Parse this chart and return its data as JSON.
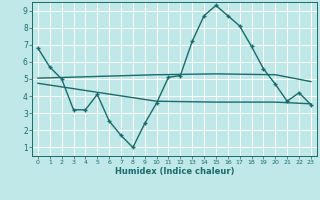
{
  "xlabel": "Humidex (Indice chaleur)",
  "ylabel": "",
  "bg_color": "#c0e8e8",
  "line_color": "#1a6b6b",
  "grid_color": "#ffffff",
  "xlim": [
    -0.5,
    23.5
  ],
  "ylim": [
    0.5,
    9.5
  ],
  "xticks": [
    0,
    1,
    2,
    3,
    4,
    5,
    6,
    7,
    8,
    9,
    10,
    11,
    12,
    13,
    14,
    15,
    16,
    17,
    18,
    19,
    20,
    21,
    22,
    23
  ],
  "yticks": [
    1,
    2,
    3,
    4,
    5,
    6,
    7,
    8,
    9
  ],
  "line1_x": [
    0,
    1,
    2,
    3,
    4,
    5,
    6,
    7,
    8,
    9,
    10,
    11,
    12,
    13,
    14,
    15,
    16,
    17,
    18,
    19,
    20,
    21,
    22,
    23
  ],
  "line1_y": [
    6.8,
    5.7,
    5.0,
    3.2,
    3.2,
    4.1,
    2.55,
    1.7,
    1.0,
    2.4,
    3.6,
    5.1,
    5.2,
    7.2,
    8.7,
    9.3,
    8.7,
    8.1,
    6.9,
    5.6,
    4.7,
    3.7,
    4.2,
    3.5
  ],
  "line2_x": [
    0,
    10,
    15,
    20,
    23
  ],
  "line2_y": [
    5.05,
    5.25,
    5.3,
    5.25,
    4.85
  ],
  "line3_x": [
    0,
    10,
    15,
    20,
    23
  ],
  "line3_y": [
    4.75,
    3.7,
    3.65,
    3.65,
    3.55
  ]
}
